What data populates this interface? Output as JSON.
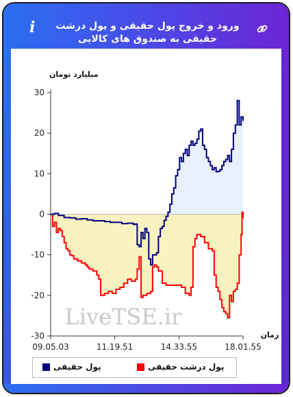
{
  "header": {
    "title": "ورود و خروج پول حقیقی و پول درشت حقیقی به صندوق های کالایی",
    "info_icon_char": "i"
  },
  "colors": {
    "real_money": "#00007f",
    "big_real_money": "#ff0000",
    "positive_fill": "#e8f1fb",
    "negative_fill": "#f8f1c0"
  },
  "watermark": "LiveTSE.ir",
  "chart_data": {
    "type": "line",
    "ylabel": "میلیارد تومان",
    "xlabel": "زمان",
    "ylim": [
      -30,
      30
    ],
    "yticks": [
      30,
      20,
      10,
      0,
      -10,
      -20,
      -30
    ],
    "xlim": [
      0,
      100
    ],
    "xticks": [
      {
        "x": 0,
        "label": "09.05.03"
      },
      {
        "x": 33.3,
        "label": "11.19.51"
      },
      {
        "x": 66.7,
        "label": "14.33.55"
      },
      {
        "x": 100,
        "label": "18.01.55"
      }
    ],
    "grid": false,
    "legend_position": "bottom",
    "series": [
      {
        "name": "پول حقیقی",
        "color": "#00007f",
        "points": [
          [
            0,
            0
          ],
          [
            2,
            0.2
          ],
          [
            4,
            -0.3
          ],
          [
            7,
            -0.8
          ],
          [
            10,
            -0.9
          ],
          [
            13,
            -1.2
          ],
          [
            16,
            -1.1
          ],
          [
            19,
            -1.4
          ],
          [
            22,
            -1.6
          ],
          [
            25,
            -1.6
          ],
          [
            28,
            -1.8
          ],
          [
            31,
            -2.0
          ],
          [
            34,
            -2.0
          ],
          [
            37,
            -2.3
          ],
          [
            40,
            -2.2
          ],
          [
            43,
            -2.5
          ],
          [
            44,
            -2.4
          ],
          [
            45,
            -7.5
          ],
          [
            46,
            -8.0
          ],
          [
            47,
            -4.5
          ],
          [
            48,
            -6.0
          ],
          [
            49,
            -3.5
          ],
          [
            50,
            -4.5
          ],
          [
            51,
            -11.0
          ],
          [
            52,
            -12.5
          ],
          [
            53,
            -10.0
          ],
          [
            55,
            -9.5
          ],
          [
            56,
            -5.5
          ],
          [
            57,
            -3.5
          ],
          [
            58,
            -3.0
          ],
          [
            59,
            -1.5
          ],
          [
            60,
            -0.5
          ],
          [
            61,
            0.5
          ],
          [
            62,
            2.5
          ],
          [
            63,
            5.0
          ],
          [
            64,
            6.5
          ],
          [
            65,
            9.5
          ],
          [
            66,
            11.0
          ],
          [
            67,
            14.0
          ],
          [
            68,
            13.0
          ],
          [
            69,
            15.0
          ],
          [
            70,
            16.0
          ],
          [
            71,
            14.5
          ],
          [
            72,
            17.0
          ],
          [
            73,
            18.0
          ],
          [
            74,
            17.0
          ],
          [
            75,
            17.5
          ],
          [
            76,
            18.5
          ],
          [
            77,
            20.5
          ],
          [
            78,
            21.0
          ],
          [
            79,
            17.0
          ],
          [
            80,
            16.0
          ],
          [
            81,
            14.0
          ],
          [
            82,
            13.0
          ],
          [
            83,
            12.0
          ],
          [
            84,
            11.0
          ],
          [
            85,
            11.5
          ],
          [
            86,
            10.5
          ],
          [
            87,
            10.6
          ],
          [
            88,
            11.0
          ],
          [
            89,
            12.0
          ],
          [
            90,
            13.0
          ],
          [
            91,
            13.5
          ],
          [
            92,
            14.5
          ],
          [
            93,
            13.0
          ],
          [
            94,
            16.0
          ],
          [
            95,
            20.0
          ],
          [
            96,
            22.0
          ],
          [
            97,
            28.0
          ],
          [
            98,
            22.0
          ],
          [
            99,
            24.0
          ],
          [
            100,
            23.0
          ]
        ]
      },
      {
        "name": "پول درشت حقیقی",
        "color": "#ff0000",
        "points": [
          [
            0,
            0
          ],
          [
            1,
            -3.0
          ],
          [
            2,
            -2.0
          ],
          [
            3,
            -4.5
          ],
          [
            4,
            -3.5
          ],
          [
            5,
            -4.0
          ],
          [
            6,
            -5.5
          ],
          [
            7,
            -7.0
          ],
          [
            8,
            -8.5
          ],
          [
            9,
            -9.0
          ],
          [
            10,
            -10.0
          ],
          [
            11,
            -10.2
          ],
          [
            12,
            -11.0
          ],
          [
            14,
            -11.5
          ],
          [
            16,
            -12.0
          ],
          [
            18,
            -12.5
          ],
          [
            19,
            -13.0
          ],
          [
            20,
            -13.5
          ],
          [
            22,
            -14.0
          ],
          [
            24,
            -15.0
          ],
          [
            25,
            -16.0
          ],
          [
            26,
            -20.0
          ],
          [
            28,
            -19.5
          ],
          [
            30,
            -19.0
          ],
          [
            32,
            -19.5
          ],
          [
            34,
            -18.5
          ],
          [
            36,
            -18.0
          ],
          [
            38,
            -17.0
          ],
          [
            40,
            -16.0
          ],
          [
            42,
            -16.5
          ],
          [
            44,
            -16.0
          ],
          [
            45,
            -13.5
          ],
          [
            46,
            -10.5
          ],
          [
            47,
            -20.5
          ],
          [
            48,
            -20.0
          ],
          [
            50,
            -19.5
          ],
          [
            52,
            -19.0
          ],
          [
            53,
            -13.0
          ],
          [
            54,
            -12.5
          ],
          [
            55,
            -13.0
          ],
          [
            56,
            -14.0
          ],
          [
            58,
            -17.0
          ],
          [
            60,
            -17.5
          ],
          [
            62,
            -17.5
          ],
          [
            64,
            -17.5
          ],
          [
            66,
            -17.5
          ],
          [
            68,
            -18.0
          ],
          [
            70,
            -19.5
          ],
          [
            72,
            -20.0
          ],
          [
            73,
            -18.0
          ],
          [
            74,
            -8.0
          ],
          [
            75,
            -6.0
          ],
          [
            76,
            -5.0
          ],
          [
            78,
            -5.5
          ],
          [
            80,
            -7.0
          ],
          [
            82,
            -8.5
          ],
          [
            84,
            -9.0
          ],
          [
            85,
            -15.0
          ],
          [
            86,
            -18.0
          ],
          [
            87,
            -19.0
          ],
          [
            88,
            -21.0
          ],
          [
            89,
            -23.0
          ],
          [
            90,
            -24.0
          ],
          [
            91,
            -24.5
          ],
          [
            92,
            -25.5
          ],
          [
            93,
            -20.0
          ],
          [
            94,
            -21.5
          ],
          [
            95,
            -19.0
          ],
          [
            96,
            -18.5
          ],
          [
            97,
            -17.0
          ],
          [
            98,
            -10.0
          ],
          [
            99,
            -5.0
          ],
          [
            99.5,
            0.5
          ],
          [
            100,
            -1.0
          ]
        ]
      }
    ]
  }
}
